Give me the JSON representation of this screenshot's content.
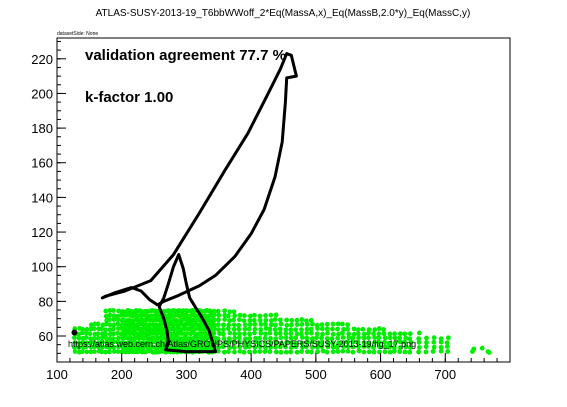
{
  "chart_data": {
    "type": "scatter",
    "title": "ATLAS-SUSY-2013-19_T6bbWWoff_2*Eq(MassA,x)_Eq(MassB,2.0*y)_Eq(MassC,y)",
    "subtitle": "datasetSide: None",
    "xlabel": "",
    "ylabel": "",
    "xlim": [
      100,
      800
    ],
    "ylim": [
      45,
      232
    ],
    "x_ticks": [
      100,
      200,
      300,
      400,
      500,
      600,
      700
    ],
    "y_ticks": [
      60,
      80,
      100,
      120,
      140,
      160,
      180,
      200,
      220
    ],
    "grid": false,
    "annotations": {
      "agreement": "validation agreement 77.7 %",
      "kfactor": "k-factor 1.00",
      "url": "https://atlas.web.cern.ch/Atlas/GROUPS/PHYSICS/PAPERS/SUSY-2013-19/fig_17.png"
    },
    "series": [
      {
        "kind": "exclusion-contour",
        "color": "#000000",
        "points": [
          [
            170,
            82
          ],
          [
            190,
            85
          ],
          [
            215,
            88
          ],
          [
            230,
            86
          ],
          [
            243,
            81
          ],
          [
            255,
            78
          ],
          [
            265,
            80
          ],
          [
            285,
            83
          ],
          [
            320,
            89
          ],
          [
            345,
            95
          ],
          [
            375,
            106
          ],
          [
            400,
            119
          ],
          [
            420,
            133
          ],
          [
            437,
            152
          ],
          [
            448,
            172
          ],
          [
            453,
            195
          ],
          [
            455,
            209
          ],
          [
            470,
            210
          ],
          [
            462,
            222
          ],
          [
            455,
            223
          ],
          [
            445,
            214
          ],
          [
            425,
            199
          ],
          [
            395,
            177
          ],
          [
            360,
            156
          ],
          [
            320,
            131
          ],
          [
            280,
            107
          ],
          [
            245,
            92
          ],
          [
            205,
            86
          ],
          [
            175,
            83
          ],
          [
            170,
            82
          ]
        ]
      },
      {
        "kind": "exclusion-contour",
        "color": "#000000",
        "points": [
          [
            258,
            77
          ],
          [
            265,
            70
          ],
          [
            270,
            63
          ],
          [
            272,
            57
          ],
          [
            268,
            52
          ],
          [
            300,
            51
          ],
          [
            345,
            51
          ],
          [
            340,
            57
          ],
          [
            335,
            63
          ],
          [
            325,
            70
          ],
          [
            315,
            76
          ],
          [
            305,
            82
          ],
          [
            300,
            90
          ],
          [
            295,
            99
          ],
          [
            288,
            107
          ],
          [
            280,
            100
          ],
          [
            272,
            90
          ],
          [
            265,
            82
          ],
          [
            258,
            77
          ]
        ]
      },
      {
        "kind": "validation-points",
        "color": "#00ee00",
        "points": "dense green dots across x≈125–770, y≈50–76"
      },
      {
        "kind": "validation-points-excluded",
        "color": "#000000",
        "points": [
          [
            127,
            62
          ]
        ]
      }
    ]
  }
}
